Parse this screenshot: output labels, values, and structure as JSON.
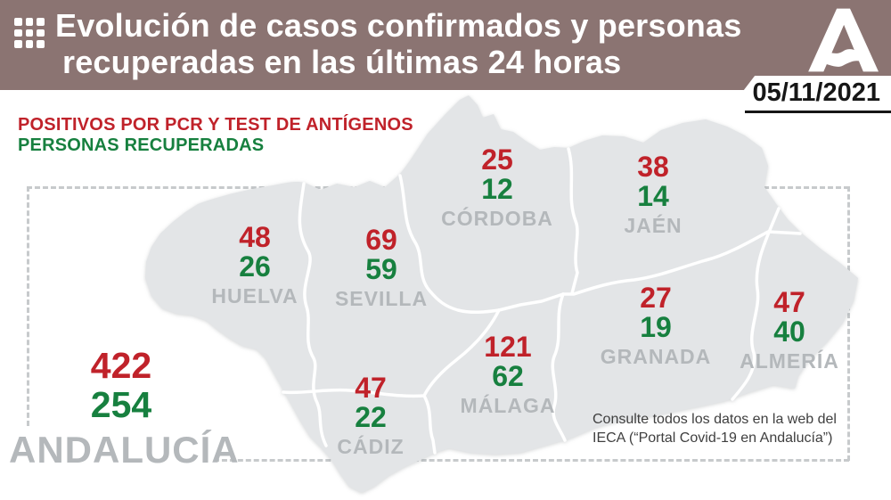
{
  "header": {
    "title_line1": "Evolución de casos confirmados y personas",
    "title_line2": "recuperadas en las últimas 24 horas",
    "date": "05/11/2021",
    "logo": "junta-de-andalucia-logo"
  },
  "legend": {
    "positives": "POSITIVOS POR PCR Y TEST DE ANTÍGENOS",
    "recovered": "PERSONAS RECUPERADAS"
  },
  "provinces": [
    {
      "id": "cordoba",
      "name": "CÓRDOBA",
      "positives": "25",
      "recovered": "12"
    },
    {
      "id": "jaen",
      "name": "JAÉN",
      "positives": "38",
      "recovered": "14"
    },
    {
      "id": "huelva",
      "name": "HUELVA",
      "positives": "48",
      "recovered": "26"
    },
    {
      "id": "sevilla",
      "name": "SEVILLA",
      "positives": "69",
      "recovered": "59"
    },
    {
      "id": "granada",
      "name": "GRANADA",
      "positives": "27",
      "recovered": "19"
    },
    {
      "id": "almeria",
      "name": "ALMERÍA",
      "positives": "47",
      "recovered": "40"
    },
    {
      "id": "malaga",
      "name": "MÁLAGA",
      "positives": "121",
      "recovered": "62"
    },
    {
      "id": "cadiz",
      "name": "CÁDIZ",
      "positives": "47",
      "recovered": "22"
    }
  ],
  "total": {
    "name": "ANDALUCÍA",
    "positives": "422",
    "recovered": "254"
  },
  "footer": {
    "line1": "Consulte todos los datos en la web del",
    "line2": "IECA (“Portal Covid-19 en Andalucía”)"
  },
  "colors": {
    "positives_red": "#c0222a",
    "recovered_green": "#17803f",
    "header_mauve": "#8b7472",
    "label_gray": "#b4b8bb",
    "map_fill": "#e3e5e7",
    "dashed_frame": "#c7cacc"
  },
  "chart_data": {
    "type": "table",
    "title": "Evolución de casos confirmados y personas recuperadas en las últimas 24 horas",
    "date": "05/11/2021",
    "categories": [
      "CÓRDOBA",
      "JAÉN",
      "HUELVA",
      "SEVILLA",
      "GRANADA",
      "ALMERÍA",
      "MÁLAGA",
      "CÁDIZ",
      "ANDALUCÍA"
    ],
    "series": [
      {
        "name": "POSITIVOS POR PCR Y TEST DE ANTÍGENOS",
        "values": [
          25,
          38,
          48,
          69,
          27,
          47,
          121,
          47,
          422
        ]
      },
      {
        "name": "PERSONAS RECUPERADAS",
        "values": [
          12,
          14,
          26,
          59,
          19,
          40,
          62,
          22,
          254
        ]
      }
    ],
    "legend_position": "top-left",
    "layout": "choropleth-style map of Andalucía with per-province value pairs"
  }
}
